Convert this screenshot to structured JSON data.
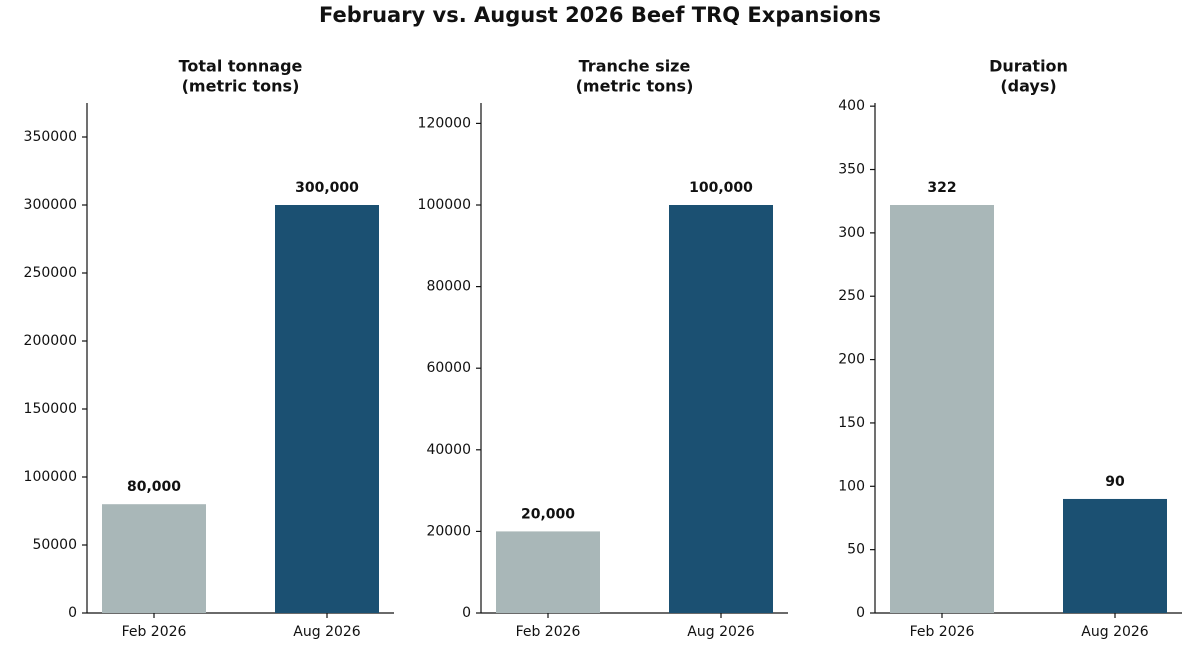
{
  "title": "February vs. August 2026 Beef TRQ Expansions",
  "chart_data": [
    {
      "type": "bar",
      "title": [
        "Total tonnage",
        "(metric tons)"
      ],
      "categories": [
        "Feb 2026",
        "Aug 2026"
      ],
      "values": [
        80000,
        300000
      ],
      "value_labels": [
        "80,000",
        "300,000"
      ],
      "colors": [
        "#a9b7b8",
        "#1b5072"
      ],
      "ylim": [
        0,
        375000
      ],
      "yticks": [
        0,
        50000,
        100000,
        150000,
        200000,
        250000,
        300000,
        350000
      ]
    },
    {
      "type": "bar",
      "title": [
        "Tranche size",
        "(metric tons)"
      ],
      "categories": [
        "Feb 2026",
        "Aug 2026"
      ],
      "values": [
        20000,
        100000
      ],
      "value_labels": [
        "20,000",
        "100,000"
      ],
      "colors": [
        "#a9b7b8",
        "#1b5072"
      ],
      "ylim": [
        0,
        125000
      ],
      "yticks": [
        0,
        20000,
        40000,
        60000,
        80000,
        100000,
        120000
      ]
    },
    {
      "type": "bar",
      "title": [
        "Duration",
        "(days)"
      ],
      "categories": [
        "Feb 2026",
        "Aug 2026"
      ],
      "values": [
        322,
        90
      ],
      "colors": [
        "#a9b7b8",
        "#1b5072"
      ],
      "ylim": [
        0,
        402.5
      ],
      "yticks": [
        0,
        50,
        100,
        150,
        200,
        250,
        300,
        350,
        400
      ]
    }
  ]
}
